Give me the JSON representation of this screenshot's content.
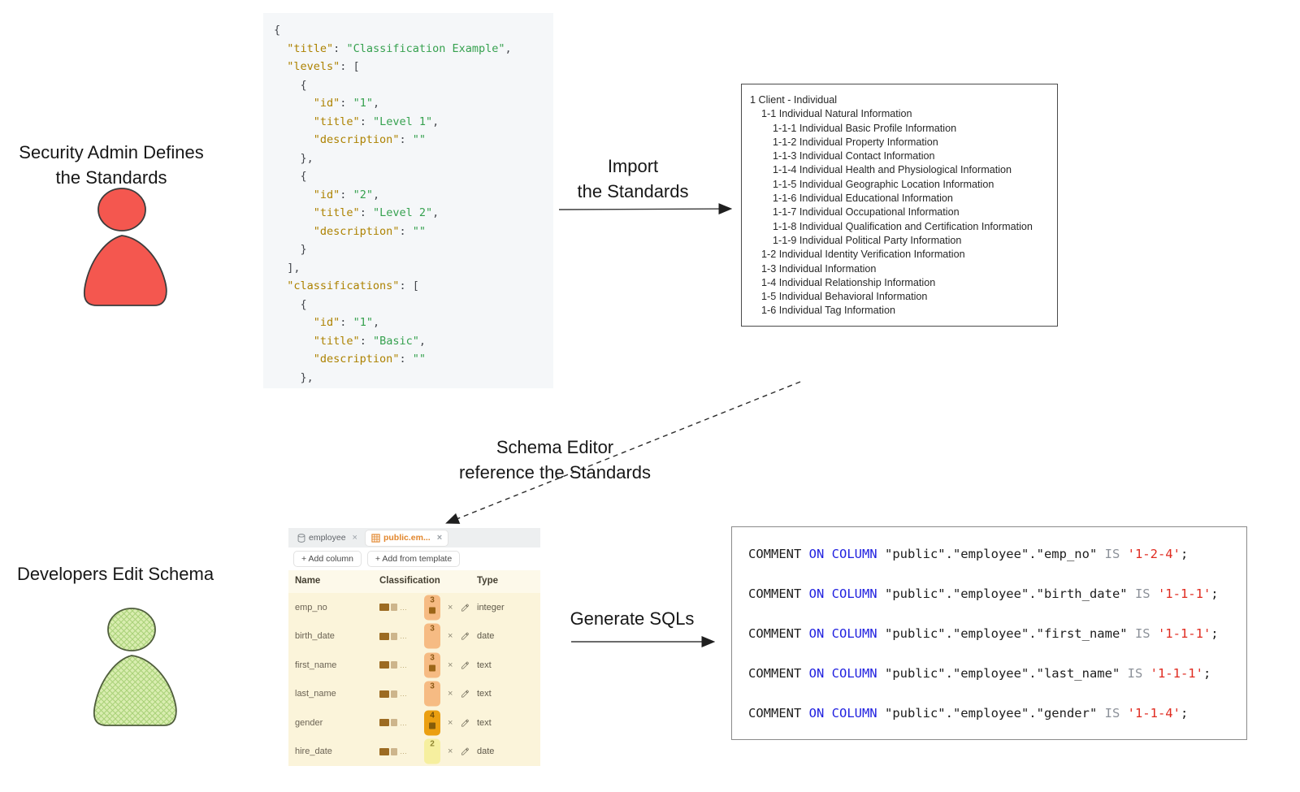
{
  "actors": {
    "admin": {
      "title": [
        "Security Admin Defines",
        "the Standards"
      ],
      "color": "#f4574f"
    },
    "developer": {
      "title": [
        "Developers Edit Schema"
      ],
      "color": "#d9edb0"
    }
  },
  "arrows": {
    "import": {
      "label": [
        "Import",
        "the Standards"
      ]
    },
    "reference": {
      "label": [
        "Schema Editor",
        "reference the Standards"
      ]
    },
    "generate": {
      "label": [
        "Generate SQLs"
      ]
    }
  },
  "code_json": {
    "lines": [
      [
        [
          "p",
          "{"
        ]
      ],
      [
        [
          "p",
          "  "
        ],
        [
          "k",
          "\"title\""
        ],
        [
          "p",
          ": "
        ],
        [
          "s",
          "\"Classification Example\""
        ],
        [
          "p",
          ","
        ]
      ],
      [
        [
          "p",
          "  "
        ],
        [
          "k",
          "\"levels\""
        ],
        [
          "p",
          ": ["
        ]
      ],
      [
        [
          "p",
          "    {"
        ]
      ],
      [
        [
          "p",
          "      "
        ],
        [
          "k",
          "\"id\""
        ],
        [
          "p",
          ": "
        ],
        [
          "s",
          "\"1\""
        ],
        [
          "p",
          ","
        ]
      ],
      [
        [
          "p",
          "      "
        ],
        [
          "k",
          "\"title\""
        ],
        [
          "p",
          ": "
        ],
        [
          "s",
          "\"Level 1\""
        ],
        [
          "p",
          ","
        ]
      ],
      [
        [
          "p",
          "      "
        ],
        [
          "k",
          "\"description\""
        ],
        [
          "p",
          ": "
        ],
        [
          "s",
          "\"\""
        ]
      ],
      [
        [
          "p",
          "    },"
        ]
      ],
      [
        [
          "p",
          "    {"
        ]
      ],
      [
        [
          "p",
          "      "
        ],
        [
          "k",
          "\"id\""
        ],
        [
          "p",
          ": "
        ],
        [
          "s",
          "\"2\""
        ],
        [
          "p",
          ","
        ]
      ],
      [
        [
          "p",
          "      "
        ],
        [
          "k",
          "\"title\""
        ],
        [
          "p",
          ": "
        ],
        [
          "s",
          "\"Level 2\""
        ],
        [
          "p",
          ","
        ]
      ],
      [
        [
          "p",
          "      "
        ],
        [
          "k",
          "\"description\""
        ],
        [
          "p",
          ": "
        ],
        [
          "s",
          "\"\""
        ]
      ],
      [
        [
          "p",
          "    }"
        ]
      ],
      [
        [
          "p",
          "  ],"
        ]
      ],
      [
        [
          "p",
          "  "
        ],
        [
          "k",
          "\"classifications\""
        ],
        [
          "p",
          ": ["
        ]
      ],
      [
        [
          "p",
          "    {"
        ]
      ],
      [
        [
          "p",
          "      "
        ],
        [
          "k",
          "\"id\""
        ],
        [
          "p",
          ": "
        ],
        [
          "s",
          "\"1\""
        ],
        [
          "p",
          ","
        ]
      ],
      [
        [
          "p",
          "      "
        ],
        [
          "k",
          "\"title\""
        ],
        [
          "p",
          ": "
        ],
        [
          "s",
          "\"Basic\""
        ],
        [
          "p",
          ","
        ]
      ],
      [
        [
          "p",
          "      "
        ],
        [
          "k",
          "\"description\""
        ],
        [
          "p",
          ": "
        ],
        [
          "s",
          "\"\""
        ]
      ],
      [
        [
          "p",
          "    },"
        ]
      ]
    ],
    "colors": {
      "key": "#ad8200",
      "string": "#36a14f",
      "punct": "#45484e",
      "background": "#f5f7f9"
    }
  },
  "standards_tree": {
    "items": [
      {
        "indent": 0,
        "text": "1 Client - Individual"
      },
      {
        "indent": 1,
        "text": "1-1 Individual Natural Information"
      },
      {
        "indent": 2,
        "text": "1-1-1 Individual Basic Profile Information"
      },
      {
        "indent": 2,
        "text": "1-1-2 Individual Property Information"
      },
      {
        "indent": 2,
        "text": "1-1-3 Individual Contact Information"
      },
      {
        "indent": 2,
        "text": "1-1-4 Individual Health and Physiological Information"
      },
      {
        "indent": 2,
        "text": "1-1-5 Individual Geographic Location Information"
      },
      {
        "indent": 2,
        "text": "1-1-6 Individual Educational Information"
      },
      {
        "indent": 2,
        "text": "1-1-7 Individual Occupational Information"
      },
      {
        "indent": 2,
        "text": "1-1-8 Individual Qualification and Certification Information"
      },
      {
        "indent": 2,
        "text": "1-1-9 Individual Political Party Information"
      },
      {
        "indent": 1,
        "text": "1-2 Individual Identity Verification Information"
      },
      {
        "indent": 1,
        "text": "1-3 Individual Information"
      },
      {
        "indent": 1,
        "text": "1-4 Individual Relationship Information"
      },
      {
        "indent": 1,
        "text": "1-5 Individual Behavioral Information"
      },
      {
        "indent": 1,
        "text": "1-6 Individual Tag Information"
      }
    ]
  },
  "schema_editor": {
    "tabs": [
      {
        "label": "employee",
        "icon": "database-icon",
        "active": false
      },
      {
        "label": "public.em...",
        "icon": "table-icon",
        "active": true
      }
    ],
    "buttons": [
      "+ Add column",
      "+ Add from template"
    ],
    "columns": [
      "Name",
      "Classification",
      "Type"
    ],
    "glyphs": {
      "close": "×",
      "ellipsis": "…"
    },
    "rows": [
      {
        "name": "emp_no",
        "badge": "3",
        "badge_style": "light-orange",
        "inner": true,
        "type": "integer"
      },
      {
        "name": "birth_date",
        "badge": "3",
        "badge_style": "light-orange",
        "inner": false,
        "type": "date"
      },
      {
        "name": "first_name",
        "badge": "3",
        "badge_style": "light-orange",
        "inner": true,
        "type": "text"
      },
      {
        "name": "last_name",
        "badge": "3",
        "badge_style": "light-orange",
        "inner": false,
        "type": "text"
      },
      {
        "name": "gender",
        "badge": "4",
        "badge_style": "orange",
        "inner": true,
        "type": "text"
      },
      {
        "name": "hire_date",
        "badge": "2",
        "badge_style": "yellow",
        "inner": false,
        "type": "date"
      }
    ]
  },
  "sql_panel": {
    "colors": {
      "keyword_blue": "#2222e0",
      "string_red": "#e02b20",
      "operator_gray": "#8c9199",
      "plain": "#1d1d1d"
    },
    "statements": [
      [
        [
          "t",
          "COMMENT "
        ],
        [
          "b",
          "ON COLUMN"
        ],
        [
          "t",
          " \"public\".\"employee\".\"emp_no\" "
        ],
        [
          "g",
          "IS"
        ],
        [
          "t",
          " "
        ],
        [
          "r",
          "'1-2-4'"
        ],
        [
          "t",
          ";"
        ]
      ],
      [
        [
          "t",
          "COMMENT "
        ],
        [
          "b",
          "ON COLUMN"
        ],
        [
          "t",
          " \"public\".\"employee\".\"birth_date\" "
        ],
        [
          "g",
          "IS"
        ],
        [
          "t",
          " "
        ],
        [
          "r",
          "'1-1-1'"
        ],
        [
          "t",
          ";"
        ]
      ],
      [
        [
          "t",
          "COMMENT "
        ],
        [
          "b",
          "ON COLUMN"
        ],
        [
          "t",
          " \"public\".\"employee\".\"first_name\" "
        ],
        [
          "g",
          "IS"
        ],
        [
          "t",
          " "
        ],
        [
          "r",
          "'1-1-1'"
        ],
        [
          "t",
          ";"
        ]
      ],
      [
        [
          "t",
          "COMMENT "
        ],
        [
          "b",
          "ON COLUMN"
        ],
        [
          "t",
          " \"public\".\"employee\".\"last_name\" "
        ],
        [
          "g",
          "IS"
        ],
        [
          "t",
          " "
        ],
        [
          "r",
          "'1-1-1'"
        ],
        [
          "t",
          ";"
        ]
      ],
      [
        [
          "t",
          "COMMENT "
        ],
        [
          "b",
          "ON COLUMN"
        ],
        [
          "t",
          " \"public\".\"employee\".\"gender\" "
        ],
        [
          "g",
          "IS"
        ],
        [
          "t",
          " "
        ],
        [
          "r",
          "'1-1-4'"
        ],
        [
          "t",
          ";"
        ]
      ]
    ]
  }
}
